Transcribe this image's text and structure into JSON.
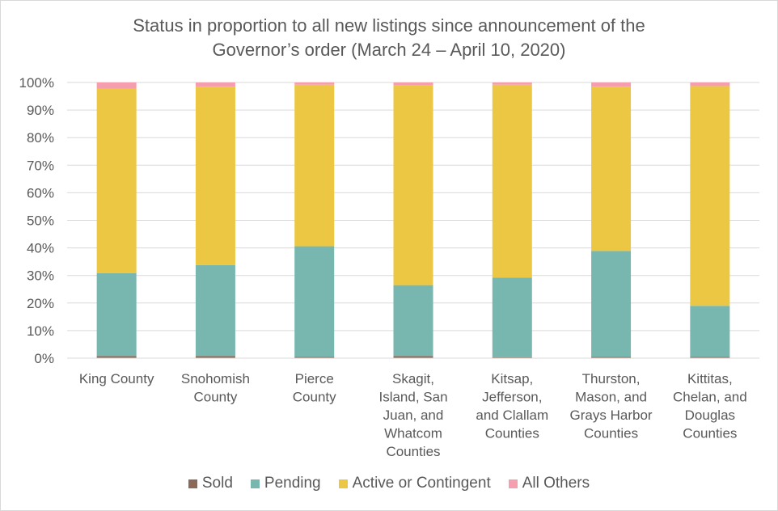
{
  "chart_data": {
    "type": "bar",
    "stacked": true,
    "orientation": "vertical",
    "title": "Status in proportion to all new listings since announcement of the\nGovernor’s order (March 24 – April 10, 2020)",
    "xlabel": "",
    "ylabel": "",
    "ylim": [
      0,
      100
    ],
    "y_ticks": [
      "0%",
      "10%",
      "20%",
      "30%",
      "40%",
      "50%",
      "60%",
      "70%",
      "80%",
      "90%",
      "100%"
    ],
    "grid": true,
    "legend_position": "bottom",
    "categories": [
      [
        "King County"
      ],
      [
        "Snohomish",
        "County"
      ],
      [
        "Pierce",
        "County"
      ],
      [
        "Skagit,",
        "Island, San",
        "Juan, and",
        "Whatcom",
        "Counties"
      ],
      [
        "Kitsap,",
        "Jefferson,",
        "and Clallam",
        "Counties"
      ],
      [
        "Thurston,",
        "Mason, and",
        "Grays Harbor",
        "Counties"
      ],
      [
        "Kittitas,",
        "Chelan, and",
        "Douglas",
        "Counties"
      ]
    ],
    "series": [
      {
        "name": "Sold",
        "color": "#8b6a5a",
        "values": [
          0.8,
          0.8,
          0.5,
          0.8,
          0.3,
          0.5,
          0.5
        ]
      },
      {
        "name": "Pending",
        "color": "#78b7b0",
        "values": [
          30.0,
          33.0,
          40.1,
          25.7,
          28.9,
          38.4,
          18.5
        ]
      },
      {
        "name": "Active or Contingent",
        "color": "#ebc743",
        "values": [
          67.0,
          64.7,
          58.6,
          72.5,
          70.0,
          59.6,
          79.7
        ]
      },
      {
        "name": "All Others",
        "color": "#f59fae",
        "values": [
          2.2,
          1.5,
          0.8,
          1.0,
          0.8,
          1.5,
          1.3
        ]
      }
    ]
  }
}
